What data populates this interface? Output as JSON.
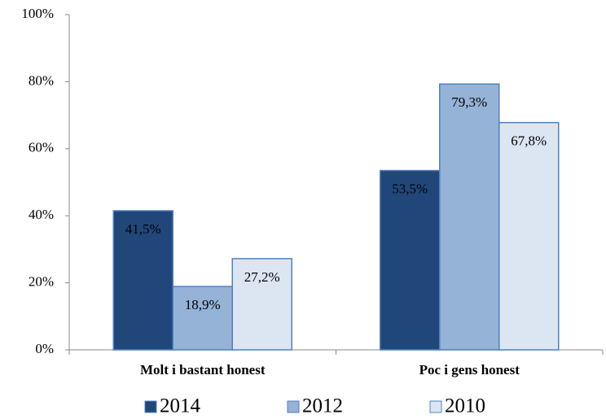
{
  "chart_data": {
    "type": "bar",
    "categories": [
      "Molt i bastant honest",
      "Poc i gens honest"
    ],
    "series": [
      {
        "name": "2014",
        "color": "#21477a",
        "values": [
          41.5,
          53.5
        ],
        "value_labels": [
          "41,5%",
          "53,5%"
        ]
      },
      {
        "name": "2012",
        "color": "#95b3d7",
        "values": [
          18.9,
          79.3
        ],
        "value_labels": [
          "18,9%",
          "79,3%"
        ]
      },
      {
        "name": "2010",
        "color": "#dce6f2",
        "values": [
          27.2,
          67.8
        ],
        "value_labels": [
          "27,2%",
          "67,8%"
        ]
      }
    ],
    "ylim": [
      0,
      100
    ],
    "yticks": [
      {
        "value": 0,
        "label": "0%"
      },
      {
        "value": 20,
        "label": "20%"
      },
      {
        "value": 40,
        "label": "40%"
      },
      {
        "value": 60,
        "label": "60%"
      },
      {
        "value": 80,
        "label": "80%"
      },
      {
        "value": 100,
        "label": "100%"
      }
    ],
    "grid": false,
    "legend": "bottom"
  }
}
